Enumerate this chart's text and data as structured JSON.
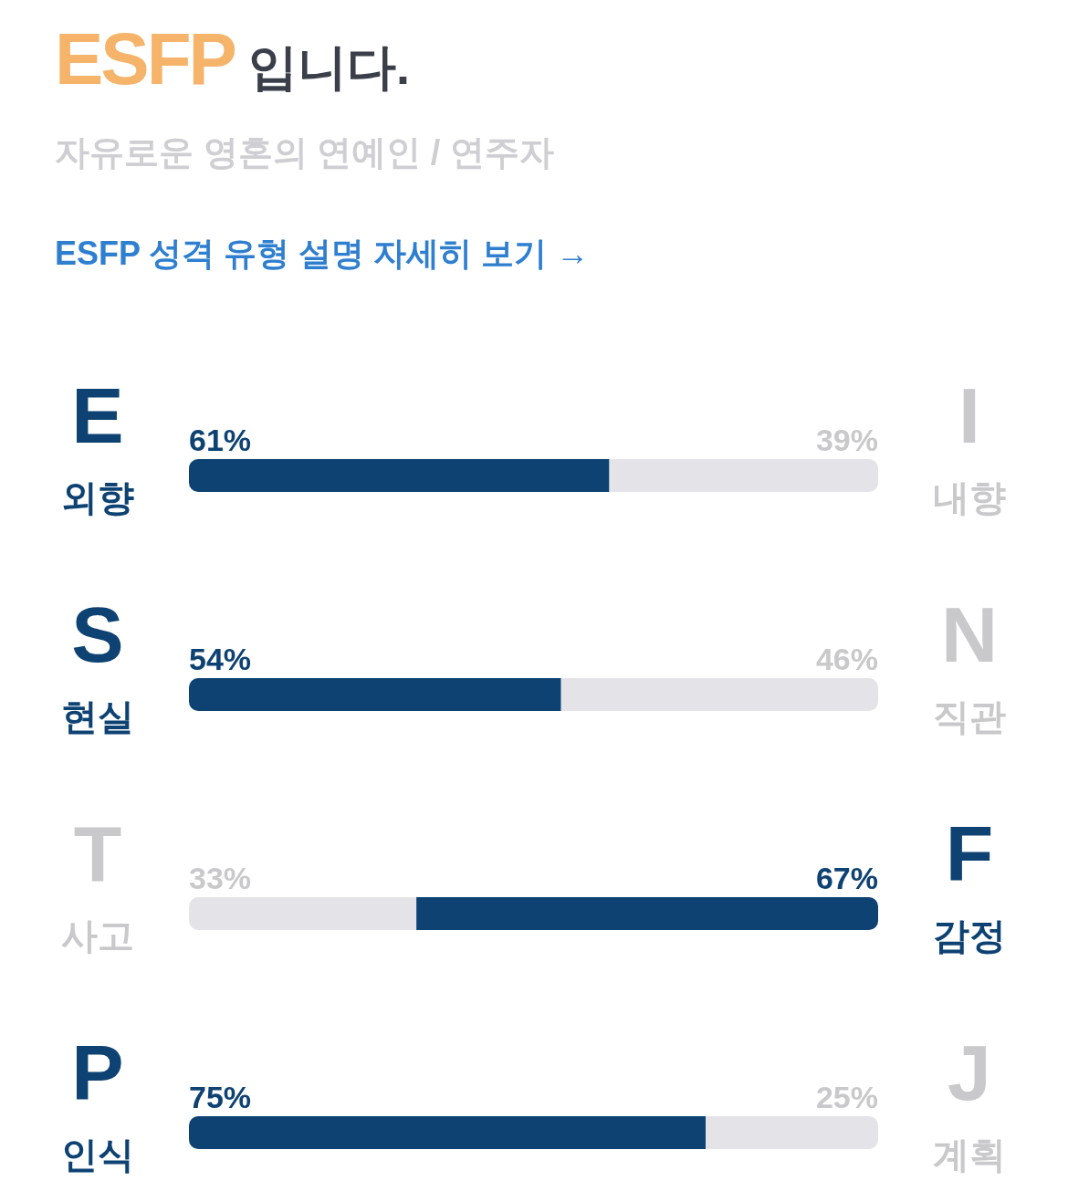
{
  "chart_data": {
    "type": "bar",
    "orientation": "horizontal",
    "stacked": true,
    "title": "ESFP 입니다.",
    "subtitle": "자유로운 영혼의 연예인 / 연주자",
    "annotations": [
      "ESFP 성격 유형 설명 자세히 보기 →"
    ],
    "categories": [
      "E\n외향",
      "S\n현실",
      "T\n사고",
      "P\n인식"
    ],
    "y2_categories": [
      "I\n내향",
      "N\n직관",
      "F\n감정",
      "J\n계획"
    ],
    "series": [
      {
        "values": [
          61,
          54,
          33,
          75
        ],
        "colors": [
          "#0e4272",
          "#0e4272",
          "#e4e4e8",
          "#0e4272"
        ],
        "value_labels": [
          "61%",
          "54%",
          "33%",
          "75%"
        ]
      },
      {
        "values": [
          39,
          46,
          67,
          25
        ],
        "colors": [
          "#e4e4e8",
          "#e4e4e8",
          "#0e4272",
          "#e4e4e8"
        ],
        "value_labels": [
          "39%",
          "46%",
          "67%",
          "25%"
        ]
      }
    ]
  }
}
